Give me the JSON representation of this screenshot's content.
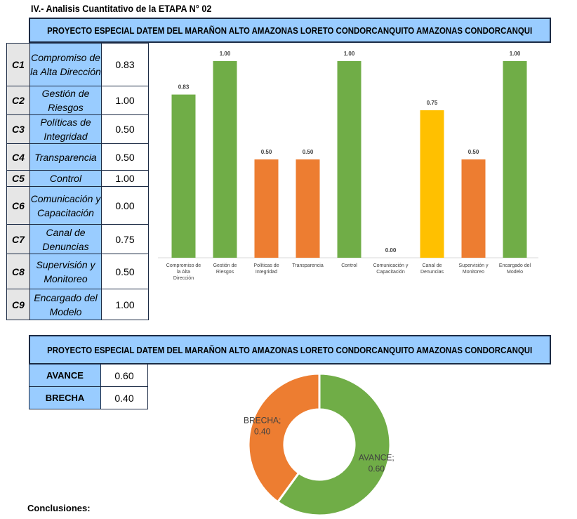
{
  "section_title": "IV.- Analisis Cuantitativo de la ETAPA N° 02",
  "project_title": "PROYECTO ESPECIAL DATEM DEL MARAÑON ALTO AMAZONAS LORETO CONDORCANQUITO AMAZONAS CONDORCANQUI",
  "criteria": [
    {
      "code": "C1",
      "name": "Compromiso de la Alta Dirección",
      "value": "0.83"
    },
    {
      "code": "C2",
      "name": "Gestión de Riesgos",
      "value": "1.00"
    },
    {
      "code": "C3",
      "name": "Políticas de Integridad",
      "value": "0.50"
    },
    {
      "code": "C4",
      "name": "Transparencia",
      "value": "0.50"
    },
    {
      "code": "C5",
      "name": "Control",
      "value": "1.00"
    },
    {
      "code": "C6",
      "name": "Comunicación y Capacitación",
      "value": "0.00"
    },
    {
      "code": "C7",
      "name": "Canal de Denuncias",
      "value": "0.75"
    },
    {
      "code": "C8",
      "name": "Supervisión y Monitoreo",
      "value": "0.50"
    },
    {
      "code": "C9",
      "name": "Encargado del Modelo",
      "value": "1.00"
    }
  ],
  "summary": [
    {
      "label": "AVANCE",
      "value": "0.60"
    },
    {
      "label": "BRECHA",
      "value": "0.40"
    }
  ],
  "conclusions_label": "Conclusiones:",
  "colors": {
    "green": "#70ad47",
    "orange": "#ed7d31",
    "yellow": "#ffc000",
    "banner": "#99ccff"
  },
  "chart_data": [
    {
      "type": "bar",
      "title": "",
      "categories": [
        "Compromiso de la Alta Dirección",
        "Gestión de Riesgos",
        "Políticas de Integridad",
        "Transparencia",
        "Control",
        "Comunicación y Capacitación",
        "Canal de Denuncias",
        "Supervisión y Monitoreo",
        "Encargado del Modelo"
      ],
      "values": [
        0.83,
        1.0,
        0.5,
        0.5,
        1.0,
        0.0,
        0.75,
        0.5,
        1.0
      ],
      "value_labels": [
        "0.83",
        "1.00",
        "0.50",
        "0.50",
        "1.00",
        "0.00",
        "0.75",
        "0.50",
        "1.00"
      ],
      "bar_colors": [
        "green",
        "green",
        "orange",
        "orange",
        "green",
        "orange",
        "yellow",
        "orange",
        "green"
      ],
      "ylim": [
        0,
        1
      ],
      "xlabel": "",
      "ylabel": "",
      "grid": false
    },
    {
      "type": "pie",
      "variant": "donut",
      "categories": [
        "AVANCE",
        "BRECHA"
      ],
      "values": [
        0.6,
        0.4
      ],
      "labels": [
        "AVANCE;",
        "BRECHA;"
      ],
      "value_labels": [
        "0.60",
        "0.40"
      ],
      "slice_colors": [
        "green",
        "orange"
      ]
    }
  ]
}
